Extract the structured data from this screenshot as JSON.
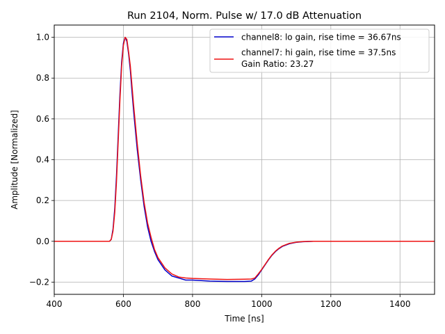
{
  "chart_data": {
    "type": "line",
    "title": "Run 2104, Norm. Pulse w/ 17.0 dB Attenuation",
    "xlabel": "Time [ns]",
    "ylabel": "Amplitude [Normalized]",
    "xlim": [
      400,
      1500
    ],
    "ylim": [
      -0.26,
      1.06
    ],
    "xticks": [
      400,
      600,
      800,
      1000,
      1200,
      1400
    ],
    "xtick_labels": [
      "400",
      "600",
      "800",
      "1000",
      "1200",
      "1400"
    ],
    "yticks": [
      -0.2,
      0.0,
      0.2,
      0.4,
      0.6,
      0.8,
      1.0
    ],
    "ytick_labels": [
      "−0.2",
      "0.0",
      "0.2",
      "0.4",
      "0.6",
      "0.8",
      "1.0"
    ],
    "grid": true,
    "legend_position": "top-right",
    "series": [
      {
        "name": "channel8: lo gain, rise time = 36.67ns",
        "color": "#0000cc",
        "x": [
          400,
          500,
          560,
          565,
          570,
          575,
          580,
          585,
          590,
          595,
          600,
          605,
          610,
          615,
          620,
          625,
          630,
          640,
          650,
          660,
          670,
          680,
          690,
          700,
          720,
          740,
          760,
          780,
          800,
          850,
          900,
          950,
          970,
          980,
          990,
          1000,
          1010,
          1020,
          1030,
          1040,
          1050,
          1060,
          1080,
          1100,
          1120,
          1150,
          1200,
          1300,
          1400,
          1500
        ],
        "y": [
          0.0,
          0.0,
          0.0,
          0.01,
          0.06,
          0.16,
          0.32,
          0.52,
          0.72,
          0.88,
          0.97,
          1.0,
          0.98,
          0.92,
          0.84,
          0.73,
          0.63,
          0.45,
          0.3,
          0.17,
          0.07,
          0.0,
          -0.05,
          -0.09,
          -0.14,
          -0.17,
          -0.18,
          -0.19,
          -0.19,
          -0.195,
          -0.197,
          -0.197,
          -0.195,
          -0.185,
          -0.165,
          -0.14,
          -0.115,
          -0.09,
          -0.068,
          -0.05,
          -0.036,
          -0.025,
          -0.012,
          -0.005,
          -0.002,
          0.0,
          0.0,
          0.0,
          0.0,
          0.0
        ]
      },
      {
        "name": "channel7: hi gain, rise time = 37.5ns",
        "color": "#ee1111",
        "x": [
          400,
          500,
          560,
          565,
          570,
          575,
          580,
          585,
          590,
          595,
          600,
          605,
          610,
          615,
          620,
          625,
          630,
          640,
          650,
          660,
          670,
          680,
          690,
          700,
          720,
          740,
          760,
          780,
          800,
          850,
          900,
          950,
          970,
          980,
          990,
          1000,
          1010,
          1020,
          1030,
          1040,
          1050,
          1060,
          1080,
          1100,
          1120,
          1150,
          1200,
          1300,
          1400,
          1500
        ],
        "y": [
          0.0,
          0.0,
          0.0,
          0.01,
          0.05,
          0.14,
          0.29,
          0.49,
          0.69,
          0.86,
          0.96,
          1.0,
          0.99,
          0.93,
          0.86,
          0.76,
          0.66,
          0.48,
          0.32,
          0.19,
          0.09,
          0.02,
          -0.04,
          -0.08,
          -0.13,
          -0.16,
          -0.175,
          -0.18,
          -0.182,
          -0.185,
          -0.187,
          -0.186,
          -0.185,
          -0.18,
          -0.16,
          -0.138,
          -0.113,
          -0.088,
          -0.066,
          -0.048,
          -0.034,
          -0.023,
          -0.01,
          -0.004,
          -0.001,
          0.0,
          0.0,
          0.0,
          0.0,
          0.0
        ]
      }
    ],
    "annotation_lines": [
      "Gain Ratio: 23.27"
    ]
  }
}
